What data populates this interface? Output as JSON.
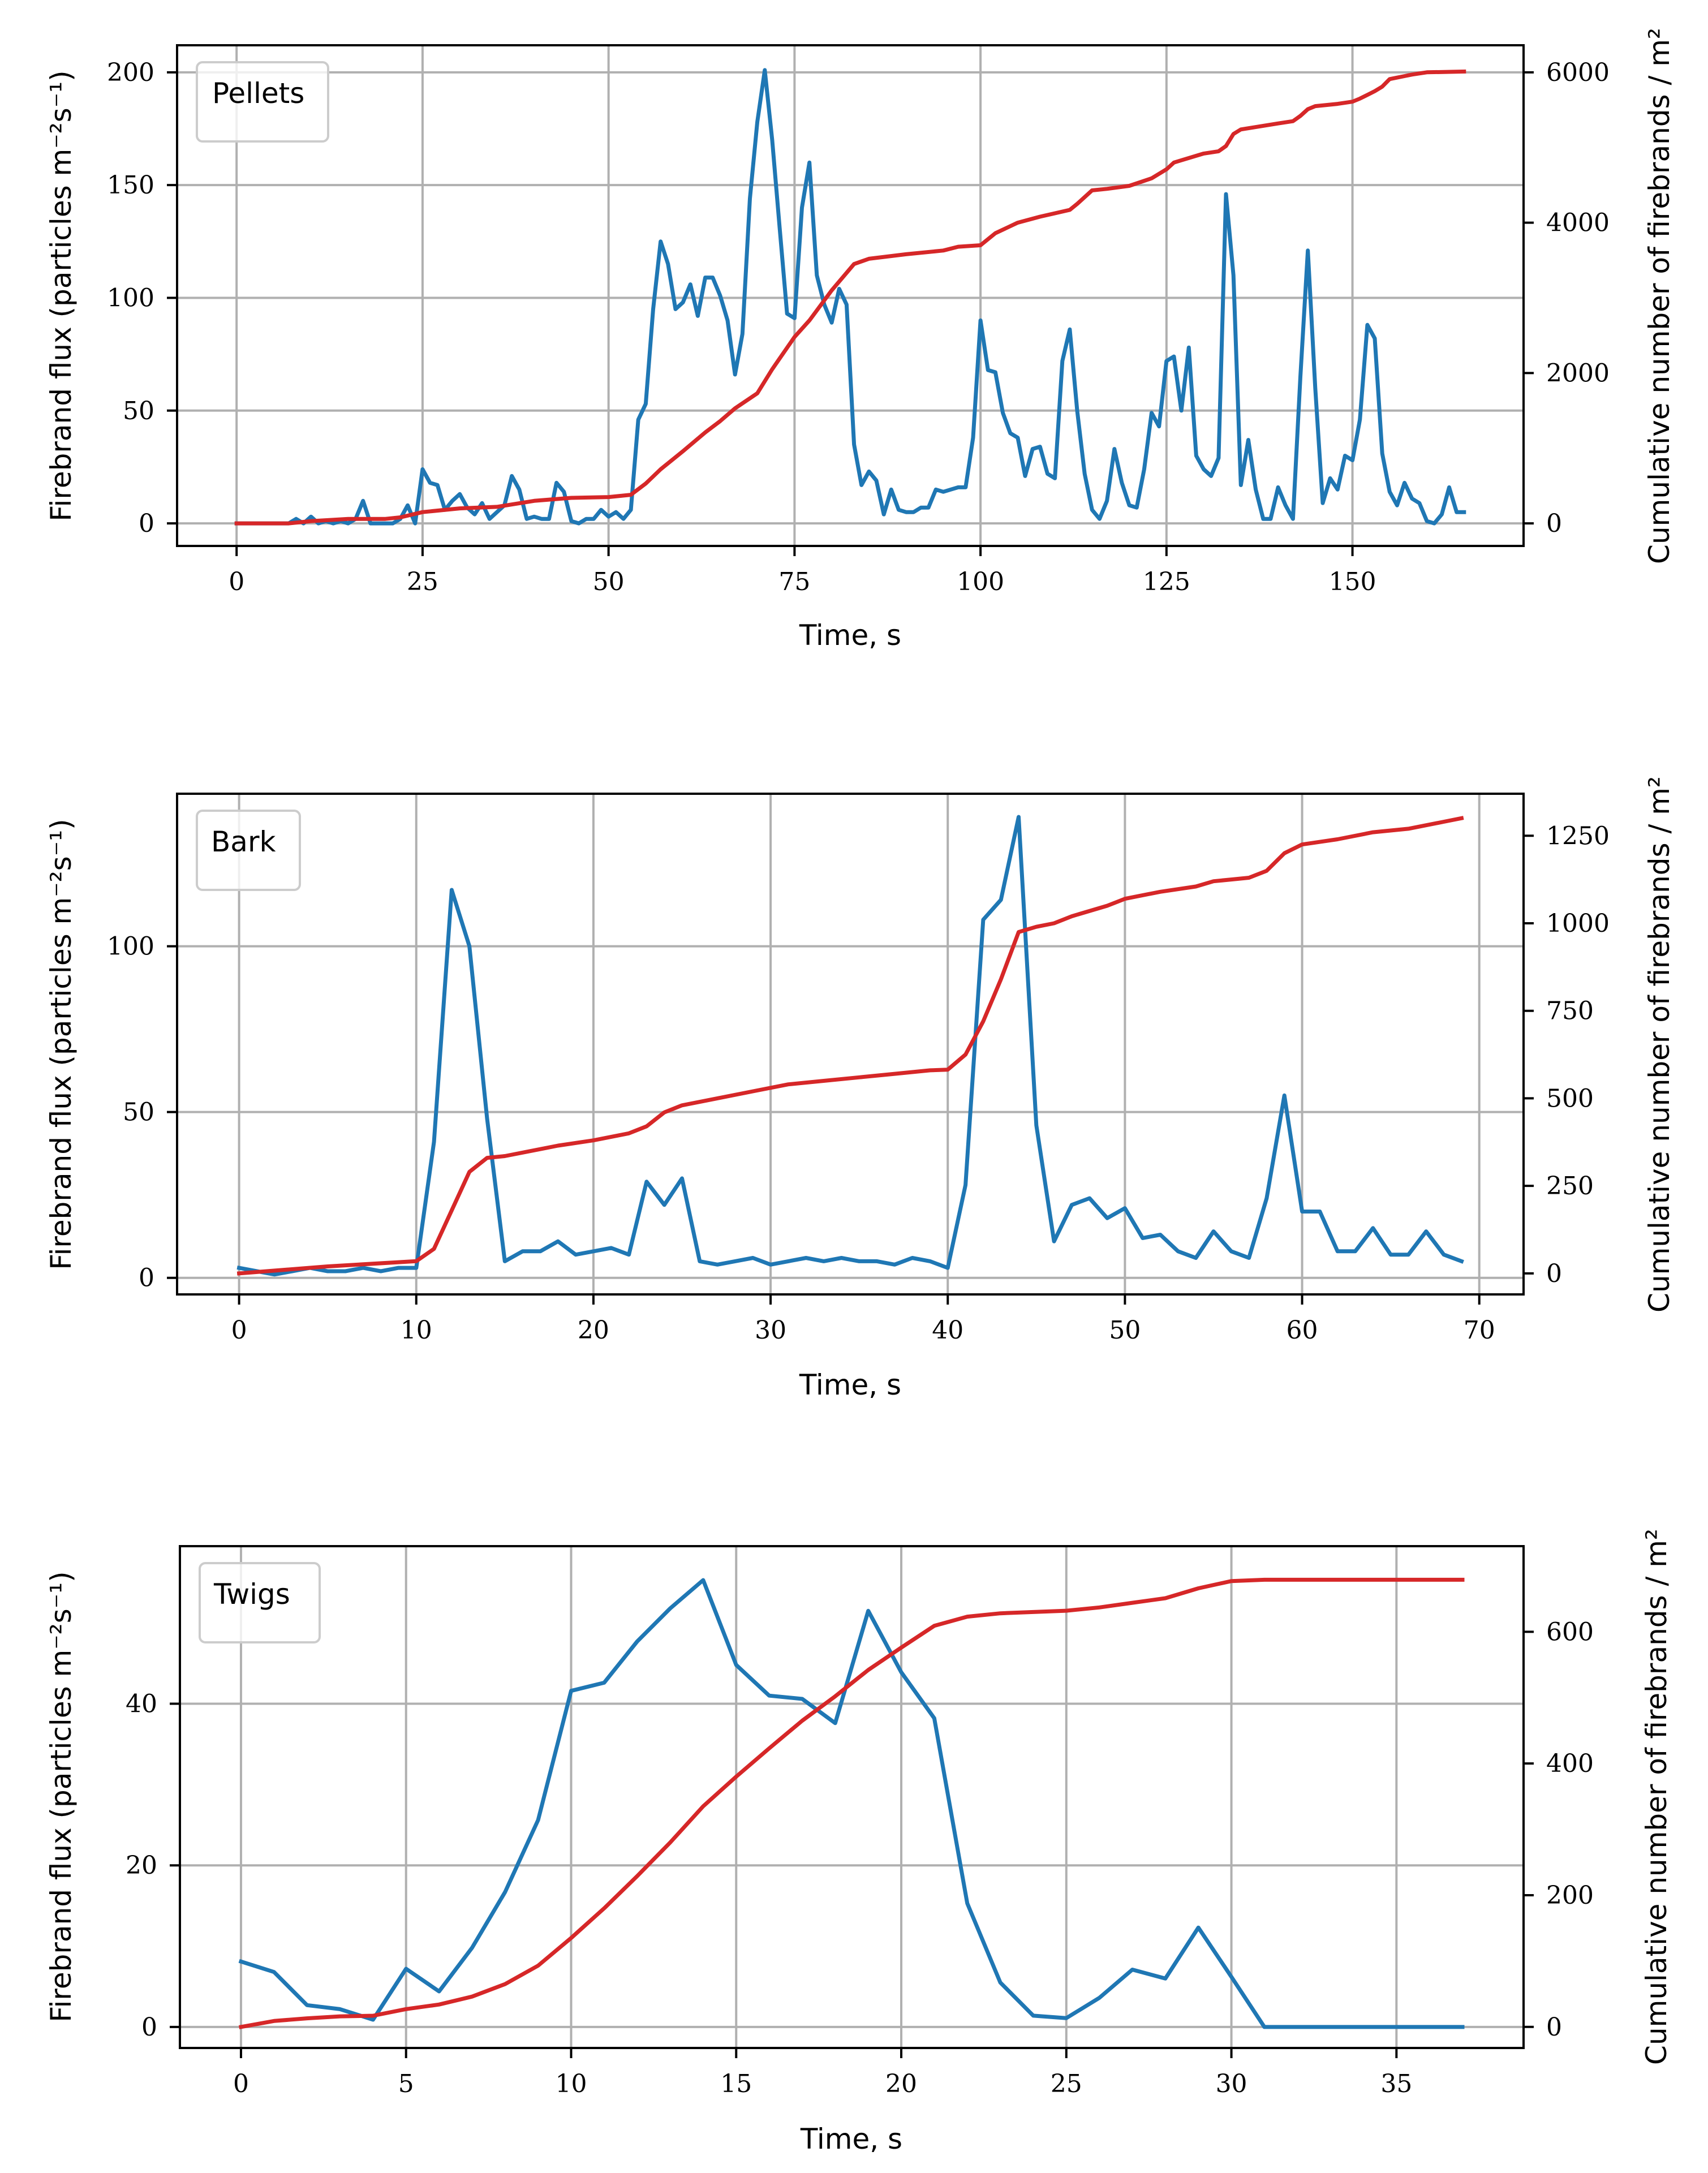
{
  "chart_data": [
    {
      "type": "line",
      "panel_label": "Pellets",
      "xlabel": "Time, s",
      "ylabel": "Firebrand flux (particles m⁻²s⁻¹)",
      "y2label": "Cumulative number of firebrands / m²",
      "xlim": [
        -8,
        173
      ],
      "ylim": [
        -10,
        212
      ],
      "y2lim": [
        -300,
        6360
      ],
      "xticks": [
        0,
        25,
        50,
        75,
        100,
        125,
        150
      ],
      "yticks": [
        0,
        50,
        100,
        150,
        200
      ],
      "y2ticks": [
        0,
        2000,
        4000,
        6000
      ],
      "grid": true,
      "legend_position": "top-left",
      "colors": {
        "flux": "#1f77b4",
        "cumulative": "#d62728"
      },
      "series": [
        {
          "name": "Firebrand flux",
          "axis": "left",
          "x": [
            0,
            1,
            2,
            3,
            4,
            5,
            6,
            7,
            8,
            9,
            10,
            11,
            12,
            13,
            14,
            15,
            16,
            17,
            18,
            19,
            20,
            21,
            22,
            23,
            24,
            25,
            26,
            27,
            28,
            29,
            30,
            31,
            32,
            33,
            34,
            35,
            36,
            37,
            38,
            39,
            40,
            41,
            42,
            43,
            44,
            45,
            46,
            47,
            48,
            49,
            50,
            51,
            52,
            53,
            54,
            55,
            56,
            57,
            58,
            59,
            60,
            61,
            62,
            63,
            64,
            65,
            66,
            67,
            68,
            69,
            70,
            71,
            72,
            73,
            74,
            75,
            76,
            77,
            78,
            79,
            80,
            81,
            82,
            83,
            84,
            85,
            86,
            87,
            88,
            89,
            90,
            91,
            92,
            93,
            94,
            95,
            96,
            97,
            98,
            99,
            100,
            101,
            102,
            103,
            104,
            105,
            106,
            107,
            108,
            109,
            110,
            111,
            112,
            113,
            114,
            115,
            116,
            117,
            118,
            119,
            120,
            121,
            122,
            123,
            124,
            125,
            126,
            127,
            128,
            129,
            130,
            131,
            132,
            133,
            134,
            135,
            136,
            137,
            138,
            139,
            140,
            141,
            142,
            143,
            144,
            145,
            146,
            147,
            148,
            149,
            150,
            151,
            152,
            153,
            154,
            155,
            156,
            157,
            158,
            159,
            160,
            161,
            162,
            163,
            164,
            165
          ],
          "values": [
            0,
            0,
            0,
            0,
            0,
            0,
            0,
            0,
            2,
            0,
            3,
            0,
            1,
            0,
            1,
            0,
            2,
            10,
            0,
            0,
            0,
            0,
            2,
            8,
            0,
            24,
            18,
            17,
            6,
            10,
            13,
            7,
            4,
            9,
            2,
            5,
            8,
            21,
            15,
            2,
            3,
            2,
            2,
            18,
            14,
            1,
            0,
            2,
            2,
            6,
            3,
            5,
            2,
            6,
            46,
            53,
            95,
            125,
            115,
            95,
            98,
            106,
            92,
            109,
            109,
            101,
            90,
            66,
            84,
            144,
            178,
            201,
            170,
            131,
            93,
            91,
            140,
            160,
            110,
            97,
            89,
            104,
            97,
            35,
            17,
            23,
            19,
            4,
            15,
            6,
            5,
            5,
            7,
            7,
            15,
            14,
            15,
            16,
            16,
            38,
            90,
            68,
            67,
            49,
            40,
            38,
            21,
            33,
            34,
            22,
            20,
            72,
            86,
            50,
            22,
            6,
            2,
            10,
            33,
            18,
            8,
            7,
            24,
            49,
            43,
            72,
            74,
            50,
            78,
            30,
            24,
            21,
            29,
            146,
            110,
            17,
            37,
            15,
            2,
            2,
            16,
            8,
            2,
            65,
            121,
            60,
            9,
            20,
            15,
            30,
            28,
            46,
            88,
            82,
            31,
            14,
            8,
            18,
            11,
            9,
            1,
            0,
            4,
            16,
            5,
            5
          ]
        },
        {
          "name": "Cumulative firebrands",
          "axis": "right",
          "x": [
            0,
            7,
            10,
            15,
            20,
            22,
            25,
            30,
            35,
            40,
            45,
            50,
            53,
            55,
            57,
            60,
            63,
            65,
            67,
            70,
            72,
            75,
            77,
            80,
            83,
            85,
            90,
            95,
            97,
            100,
            102,
            105,
            108,
            112,
            113,
            115,
            117,
            120,
            123,
            125,
            126,
            127,
            130,
            132,
            133,
            134,
            135,
            140,
            142,
            143,
            144,
            145,
            148,
            150,
            151,
            152,
            153,
            154,
            155,
            157,
            158,
            160,
            165
          ],
          "values": [
            0,
            0,
            30,
            60,
            60,
            80,
            150,
            200,
            220,
            300,
            340,
            350,
            380,
            530,
            720,
            960,
            1210,
            1360,
            1530,
            1730,
            2050,
            2480,
            2700,
            3100,
            3450,
            3520,
            3580,
            3630,
            3680,
            3700,
            3860,
            4000,
            4080,
            4170,
            4250,
            4430,
            4450,
            4490,
            4590,
            4710,
            4800,
            4830,
            4920,
            4950,
            5020,
            5180,
            5240,
            5320,
            5350,
            5420,
            5510,
            5550,
            5580,
            5610,
            5650,
            5700,
            5750,
            5810,
            5910,
            5950,
            5970,
            6000,
            6010
          ]
        }
      ]
    },
    {
      "type": "line",
      "panel_label": "Bark",
      "xlabel": "Time, s",
      "ylabel": "Firebrand flux (particles m⁻²s⁻¹)",
      "y2label": "Cumulative number of firebrands / m²",
      "xlim": [
        -3.5,
        72.5
      ],
      "ylim": [
        -5,
        146
      ],
      "y2lim": [
        -60,
        1370
      ],
      "xticks": [
        0,
        10,
        20,
        30,
        40,
        50,
        60,
        70
      ],
      "yticks": [
        0,
        50,
        100
      ],
      "y2ticks": [
        0,
        250,
        500,
        750,
        1000,
        1250
      ],
      "grid": true,
      "legend_position": "top-left",
      "colors": {
        "flux": "#1f77b4",
        "cumulative": "#d62728"
      },
      "series": [
        {
          "name": "Firebrand flux",
          "axis": "left",
          "x": [
            0,
            1,
            2,
            3,
            4,
            5,
            6,
            7,
            8,
            9,
            10,
            11,
            12,
            13,
            14,
            15,
            16,
            17,
            18,
            19,
            20,
            21,
            22,
            23,
            24,
            25,
            26,
            27,
            28,
            29,
            30,
            31,
            32,
            33,
            34,
            35,
            36,
            37,
            38,
            39,
            40,
            41,
            42,
            43,
            44,
            45,
            46,
            47,
            48,
            49,
            50,
            51,
            52,
            53,
            54,
            55,
            56,
            57,
            58,
            59,
            60,
            61,
            62,
            63,
            64,
            65,
            66,
            67,
            68,
            69
          ],
          "values": [
            3,
            2,
            1,
            2,
            3,
            2,
            2,
            3,
            2,
            3,
            3,
            41,
            117,
            100,
            48,
            5,
            8,
            8,
            11,
            7,
            8,
            9,
            7,
            29,
            22,
            30,
            5,
            4,
            5,
            6,
            4,
            5,
            6,
            5,
            6,
            5,
            5,
            4,
            6,
            5,
            3,
            28,
            108,
            114,
            139,
            46,
            11,
            22,
            24,
            18,
            21,
            12,
            13,
            8,
            6,
            14,
            8,
            6,
            24,
            55,
            20,
            20,
            8,
            8,
            15,
            7,
            7,
            14,
            7,
            5
          ]
        },
        {
          "name": "Cumulative firebrands",
          "axis": "right",
          "x": [
            0,
            5,
            10,
            11,
            12,
            13,
            14,
            15,
            17,
            18,
            20,
            22,
            23,
            24,
            25,
            27,
            29,
            31,
            33,
            35,
            37,
            39,
            40,
            41,
            42,
            43,
            44,
            45,
            46,
            47,
            49,
            50,
            52,
            54,
            55,
            56,
            57,
            58,
            59,
            60,
            62,
            64,
            66,
            67,
            68,
            69
          ],
          "values": [
            0,
            20,
            35,
            70,
            180,
            290,
            330,
            335,
            355,
            365,
            380,
            400,
            420,
            460,
            480,
            500,
            520,
            540,
            550,
            560,
            570,
            580,
            582,
            625,
            720,
            840,
            975,
            990,
            1000,
            1020,
            1050,
            1070,
            1090,
            1105,
            1120,
            1125,
            1130,
            1150,
            1200,
            1225,
            1240,
            1260,
            1270,
            1280,
            1290,
            1300
          ]
        }
      ]
    },
    {
      "type": "line",
      "panel_label": "Twigs",
      "xlabel": "Time, s",
      "ylabel": "Firebrand flux (particles m⁻²s⁻¹)",
      "y2label": "Cumulative number of firebrands / m²",
      "xlim": [
        -1.85,
        38.85
      ],
      "ylim": [
        -2.6,
        59.5
      ],
      "y2lim": [
        -32,
        730
      ],
      "xticks": [
        0,
        5,
        10,
        15,
        20,
        25,
        30,
        35
      ],
      "yticks": [
        0,
        20,
        40
      ],
      "y2ticks": [
        0,
        200,
        400,
        600
      ],
      "grid": true,
      "legend_position": "top-left",
      "colors": {
        "flux": "#1f77b4",
        "cumulative": "#d62728"
      },
      "series": [
        {
          "name": "Firebrand flux",
          "axis": "left",
          "x": [
            0,
            1,
            2,
            3,
            4,
            5,
            6,
            7,
            8,
            9,
            10,
            11,
            12,
            13,
            14,
            15,
            16,
            17,
            18,
            19,
            20,
            21,
            22,
            23,
            24,
            25,
            26,
            27,
            28,
            29,
            30,
            31,
            32,
            33,
            34,
            35,
            36,
            37
          ],
          "values": [
            8.1,
            6.8,
            2.7,
            2.2,
            0.9,
            7.2,
            4.4,
            9.8,
            16.7,
            25.6,
            41.6,
            42.6,
            47.7,
            51.8,
            55.3,
            44.8,
            41,
            40.6,
            37.6,
            51.5,
            43.9,
            38.2,
            15.3,
            5.5,
            1.4,
            1.1,
            3.6,
            7.1,
            6,
            12.3,
            6.2,
            0,
            0,
            0,
            0,
            0,
            0,
            0
          ]
        },
        {
          "name": "Cumulative firebrands",
          "axis": "right",
          "x": [
            0,
            1,
            2,
            3,
            4,
            5,
            6,
            7,
            8,
            9,
            10,
            11,
            12,
            13,
            14,
            15,
            16,
            17,
            18,
            19,
            20,
            21,
            22,
            23,
            24,
            25,
            26,
            27,
            28,
            29,
            30,
            31,
            32,
            33,
            34,
            35,
            36,
            37
          ],
          "values": [
            0,
            9,
            13,
            16,
            17,
            27,
            34,
            46,
            65,
            93,
            135,
            180,
            229,
            280,
            335,
            380,
            423,
            465,
            502,
            542,
            576,
            609,
            623,
            628,
            630,
            632,
            637,
            644,
            651,
            666,
            677,
            679,
            679,
            679,
            679,
            679,
            679,
            679
          ]
        }
      ]
    }
  ]
}
